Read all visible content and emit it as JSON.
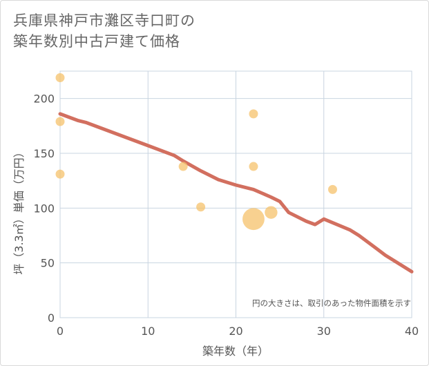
{
  "title_line1": "兵庫県神戸市灘区寺口町の",
  "title_line2": "築年数別中古戸建て価格",
  "chart_data": {
    "type": "scatter",
    "xlabel": "築年数（年）",
    "ylabel": "坪（3.3㎡）単価（万円）",
    "xlim": [
      0,
      40
    ],
    "ylim": [
      0,
      225
    ],
    "xticks": [
      0,
      10,
      20,
      30,
      40
    ],
    "yticks": [
      0,
      50,
      100,
      150,
      200
    ],
    "grid": true,
    "note": "円の大きさは、取引のあった物件面積を示す",
    "points": [
      {
        "x": 0,
        "y": 219,
        "size": 1
      },
      {
        "x": 0,
        "y": 179,
        "size": 1
      },
      {
        "x": 0,
        "y": 131,
        "size": 1
      },
      {
        "x": 14,
        "y": 138,
        "size": 1
      },
      {
        "x": 16,
        "y": 101,
        "size": 1
      },
      {
        "x": 22,
        "y": 186,
        "size": 1
      },
      {
        "x": 22,
        "y": 138,
        "size": 1
      },
      {
        "x": 22,
        "y": 90,
        "size": 6
      },
      {
        "x": 24,
        "y": 96,
        "size": 2
      },
      {
        "x": 31,
        "y": 117,
        "size": 1
      }
    ],
    "trend": [
      [
        0,
        186
      ],
      [
        1,
        183
      ],
      [
        2,
        180
      ],
      [
        3,
        178
      ],
      [
        5,
        172
      ],
      [
        8,
        163
      ],
      [
        10,
        157
      ],
      [
        13,
        148
      ],
      [
        14,
        143
      ],
      [
        16,
        134
      ],
      [
        18,
        126
      ],
      [
        20,
        121
      ],
      [
        22,
        117
      ],
      [
        24,
        110
      ],
      [
        25,
        106
      ],
      [
        26,
        96
      ],
      [
        28,
        88
      ],
      [
        29,
        85
      ],
      [
        30,
        90
      ],
      [
        33,
        80
      ],
      [
        34,
        75
      ],
      [
        36,
        63
      ],
      [
        37,
        57
      ],
      [
        38,
        52
      ],
      [
        40,
        42
      ]
    ],
    "colors": {
      "points": "#f5c26b",
      "trend": "#d26f5f",
      "grid": "#c8d4e0",
      "axis_text": "#555555"
    }
  }
}
